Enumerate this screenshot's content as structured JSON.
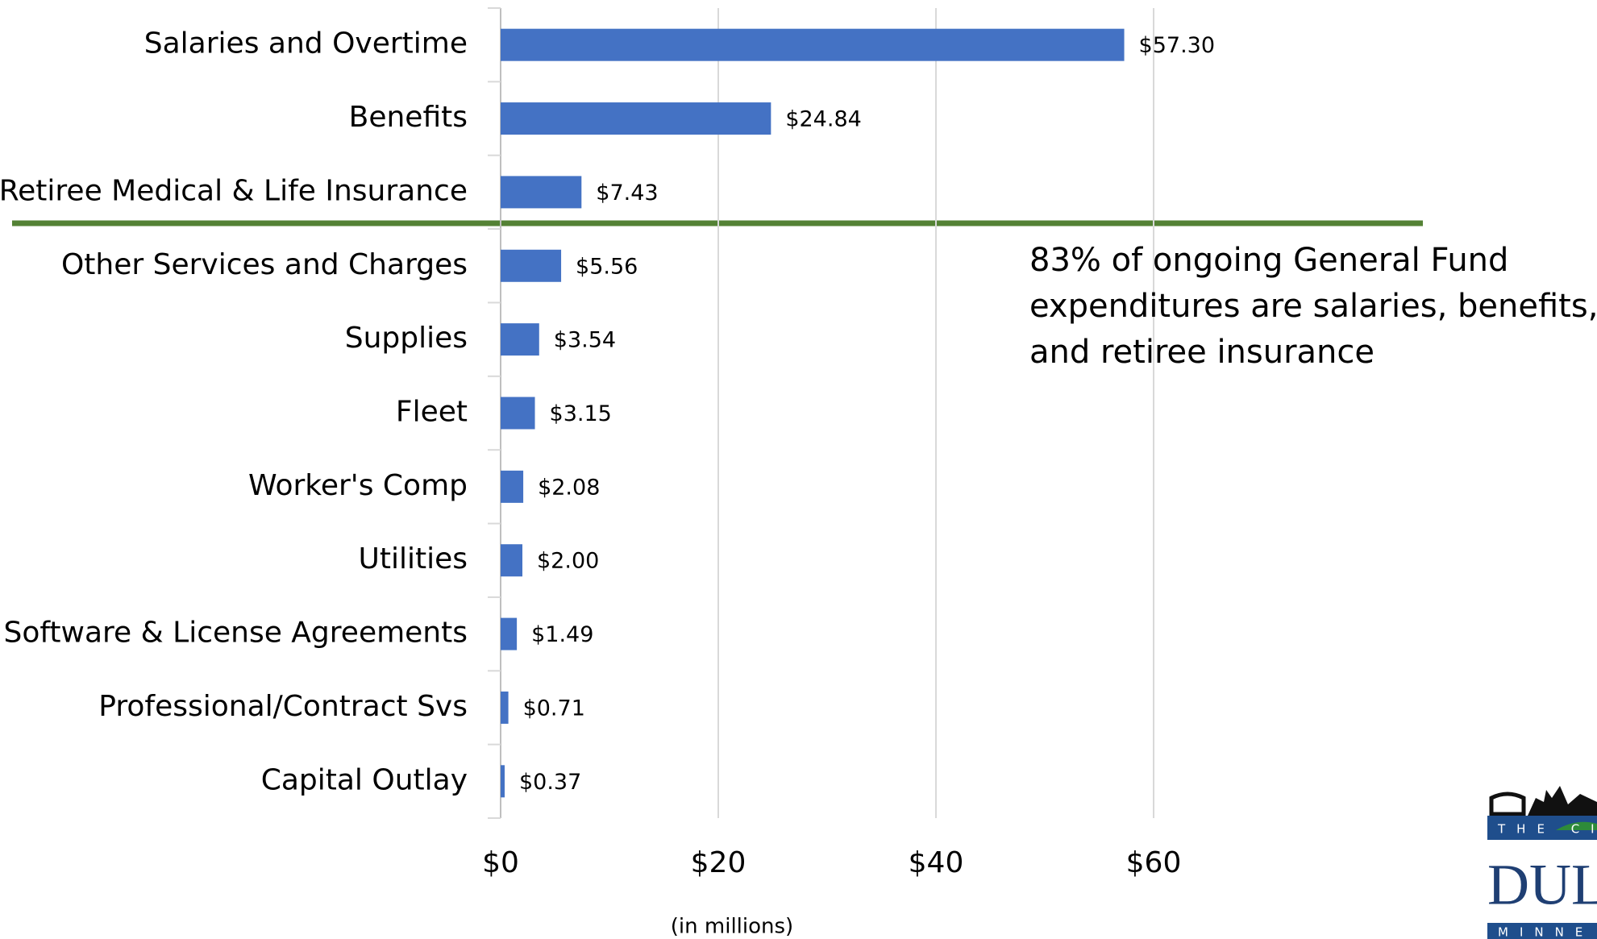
{
  "chart_data": {
    "type": "barh",
    "categories": [
      "Salaries and Overtime",
      "Benefits",
      "Retiree Medical & Life Insurance",
      "Other Services and Charges",
      "Supplies",
      "Fleet",
      "Worker's Comp",
      "Utilities",
      "Software & License Agreements",
      "Professional/Contract Svs",
      "Capital Outlay"
    ],
    "values": [
      57.3,
      24.84,
      7.43,
      5.56,
      3.54,
      3.15,
      2.08,
      2.0,
      1.49,
      0.71,
      0.37
    ],
    "value_labels": [
      "$57.30",
      "$24.84",
      "$7.43",
      "$5.56",
      "$3.54",
      "$3.15",
      "$2.08",
      "$2.00",
      "$1.49",
      "$0.71",
      "$0.37"
    ],
    "color": "#4472c4",
    "xlim": [
      0,
      60
    ],
    "xticks": [
      {
        "value": 0,
        "label": "$0"
      },
      {
        "value": 20,
        "label": "$20"
      },
      {
        "value": 40,
        "label": "$40"
      },
      {
        "value": 60,
        "label": "$60"
      }
    ],
    "grid": true,
    "x_label": "(in millions)",
    "annotation": [
      "83% of ongoing General Fund",
      "expenditures are salaries, benefits,",
      "and retiree insurance"
    ]
  },
  "logo": {
    "top": "THE CI",
    "main": "DULU",
    "bottom": "MINNE"
  }
}
